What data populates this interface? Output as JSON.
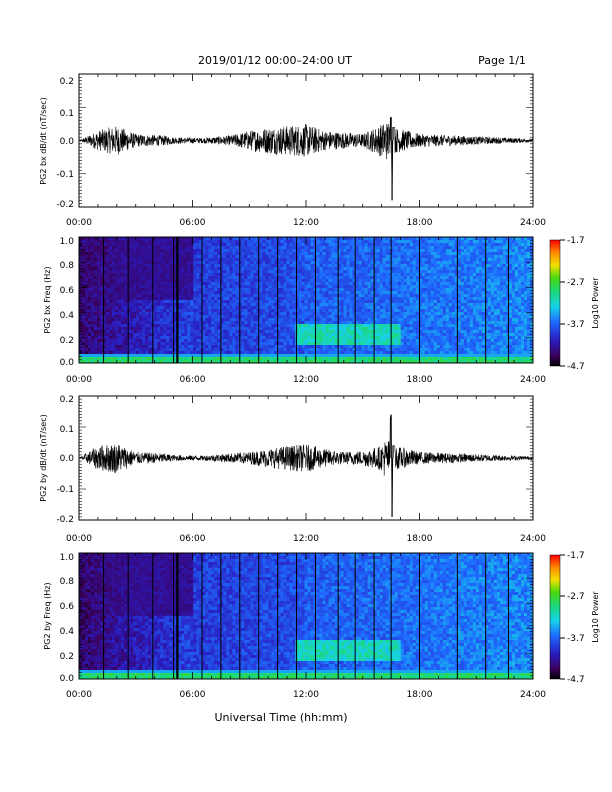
{
  "header": {
    "title": "2019/01/12  00:00–24:00 UT",
    "page": "Page 1/1"
  },
  "footer": {
    "xlabel": "Universal Time (hh:mm)"
  },
  "colors": {
    "trace": "#000000",
    "axis": "#000000",
    "background": "#ffffff"
  },
  "chart_data": [
    {
      "type": "line",
      "ylabel": "PG2 bx dB/dt (nT/sec)",
      "xlim": [
        0,
        24
      ],
      "ylim": [
        -0.2,
        0.2
      ],
      "x_tick_labels": [
        "00:00",
        "06:00",
        "12:00",
        "18:00",
        "24:00"
      ],
      "y_tick_labels": [
        "0.2",
        "0.1",
        "0.0",
        "-0.1",
        "-0.2"
      ],
      "series": [
        {
          "x": [
            0,
            1.0,
            2.0,
            3.0,
            4.5,
            5.0,
            6.5,
            8.0,
            9.0,
            10.0,
            11.0,
            12.0,
            13.0,
            14.0,
            15.0,
            16.0,
            16.5,
            16.55,
            16.6,
            17.0,
            18.0,
            20.0,
            22.0,
            24.0
          ],
          "y": [
            0.0,
            0.03,
            0.045,
            0.02,
            0.015,
            0.01,
            0.008,
            0.015,
            0.03,
            0.04,
            0.045,
            0.05,
            0.03,
            0.025,
            0.02,
            0.05,
            0.07,
            -0.18,
            0.04,
            0.035,
            0.02,
            0.015,
            0.01,
            0.005
          ]
        }
      ]
    },
    {
      "type": "heatmap",
      "ylabel": "PG2 bx Freq (Hz)",
      "xlim": [
        0,
        24
      ],
      "ylim": [
        0.0,
        1.0
      ],
      "x_tick_labels": [
        "00:00",
        "06:00",
        "12:00",
        "18:00",
        "24:00"
      ],
      "y_tick_labels": [
        "1.0",
        "0.8",
        "0.6",
        "0.4",
        "0.2",
        "0.0"
      ],
      "colorbar_label": "Log10 Power",
      "colorbar_ticks": [
        "-1.7",
        "-2.7",
        "-3.7",
        "-4.7"
      ],
      "colorbar_range": [
        -4.7,
        -1.7
      ],
      "features": {
        "enhanced_band_freq": [
          0.15,
          0.3
        ],
        "enhanced_band_time": [
          11.5,
          17.0
        ],
        "dark_region_time": [
          0,
          6
        ],
        "vertical_lines_hours": [
          1.3,
          2.6,
          3.9,
          5.0,
          5.2,
          6.5,
          7.5,
          8.5,
          9.5,
          10.5,
          11.5,
          12.5,
          13.7,
          14.6,
          15.6,
          16.5,
          18.0,
          20.0,
          21.5,
          22.7
        ]
      }
    },
    {
      "type": "line",
      "ylabel": "PG2 by dB/dt (nT/sec)",
      "xlim": [
        0,
        24
      ],
      "ylim": [
        -0.2,
        0.2
      ],
      "x_tick_labels": [
        "00:00",
        "06:00",
        "12:00",
        "18:00",
        "24:00"
      ],
      "y_tick_labels": [
        "0.2",
        "0.1",
        "0.0",
        "-0.1",
        "-0.2"
      ],
      "series": [
        {
          "x": [
            0,
            1.0,
            2.0,
            3.0,
            4.5,
            5.0,
            6.5,
            8.0,
            9.0,
            10.0,
            11.0,
            12.0,
            13.0,
            14.0,
            15.0,
            16.0,
            16.5,
            16.55,
            16.6,
            17.0,
            18.0,
            20.0,
            22.0,
            24.0
          ],
          "y": [
            0.0,
            0.04,
            0.05,
            0.02,
            0.015,
            0.01,
            0.008,
            0.015,
            0.02,
            0.03,
            0.04,
            0.045,
            0.03,
            0.02,
            0.025,
            0.04,
            0.14,
            -0.19,
            0.04,
            0.035,
            0.02,
            0.015,
            0.01,
            0.005
          ]
        }
      ]
    },
    {
      "type": "heatmap",
      "ylabel": "PG2 by Freq (Hz)",
      "xlim": [
        0,
        24
      ],
      "ylim": [
        0.0,
        1.0
      ],
      "x_tick_labels": [
        "00:00",
        "06:00",
        "12:00",
        "18:00",
        "24:00"
      ],
      "y_tick_labels": [
        "1.0",
        "0.8",
        "0.6",
        "0.4",
        "0.2",
        "0.0"
      ],
      "colorbar_label": "Log10 Power",
      "colorbar_ticks": [
        "-1.7",
        "-2.7",
        "-3.7",
        "-4.7"
      ],
      "colorbar_range": [
        -4.7,
        -1.7
      ],
      "features": {
        "enhanced_band_freq": [
          0.15,
          0.32
        ],
        "enhanced_band_time": [
          11.5,
          17.0
        ],
        "dark_region_time": [
          0,
          6
        ],
        "vertical_lines_hours": [
          1.3,
          2.6,
          3.9,
          5.0,
          5.2,
          6.5,
          7.5,
          8.5,
          9.5,
          10.5,
          11.5,
          12.5,
          13.7,
          14.6,
          15.6,
          16.5,
          18.0,
          20.0,
          21.5,
          22.7
        ]
      }
    }
  ]
}
